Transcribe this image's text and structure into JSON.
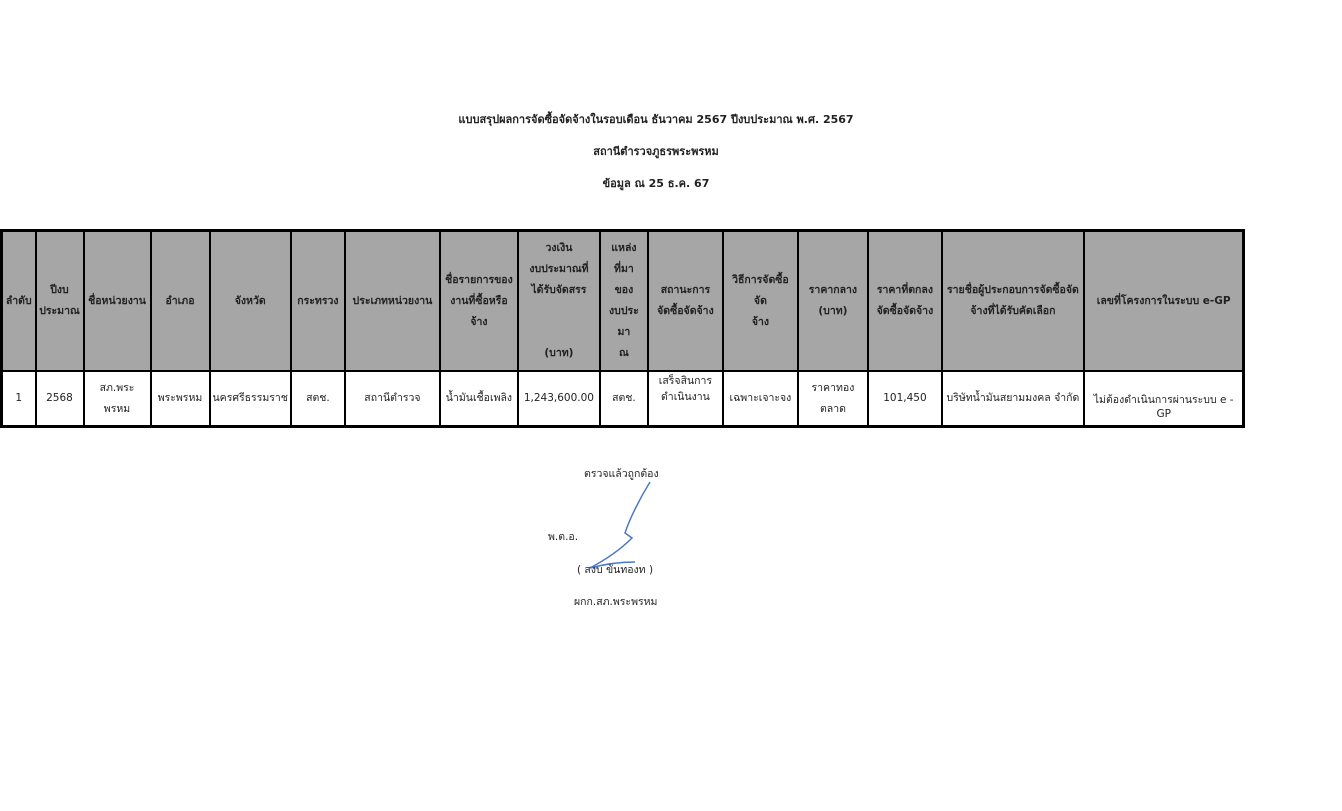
{
  "header": {
    "title": "แบบสรุปผลการจัดซื้อจัดจ้างในรอบเดือน ธันวาคม 2567 ปีงบประมาณ พ.ศ. 2567",
    "agency": "สถานีตำรวจภูธรพระพรหม",
    "as_of": "ข้อมูล ณ  25 ธ.ค. 67"
  },
  "table": {
    "columns": [
      "ลำดับ",
      "ปีงบ\nประมาณ",
      "ชื่อหน่วยงาน",
      "อำเภอ",
      "จังหวัด",
      "กระทรวง",
      "ประเภทหน่วยงาน",
      "ชื่อรายการของ\nงานที่ซื้อหรือจ้าง",
      "วงเงิน\nงบประมาณที่\nได้รับจัดสรร\n\n\n(บาท)",
      "แหล่งที่มา\nของ\nงบประมา\nณ",
      "สถานะการ\nจัดซื้อจัดจ้าง",
      "วิธีการจัดซื้อจัด\nจ้าง",
      "ราคากลาง\n(บาท)",
      "ราคาที่ตกลง\nจัดซื้อจัดจ้าง",
      "รายชื่อผู้ประกอบการจัดซื้อจัด\nจ้างที่ได้รับคัดเลือก",
      "เลขที่โครงการในระบบ e-GP"
    ],
    "rows": [
      [
        "1",
        "2568",
        "สภ.พระพรหม",
        "พระพรหม",
        "นครศรีธรรมราช",
        "สตช.",
        "สถานีตำรวจ",
        "น้ำมันเชื้อเพลิง",
        "1,243,600.00",
        "สตช.",
        "เสร็จสินการ\nดำเนินงาน",
        "เฉพาะเจาะจง",
        "ราคาทองตลาด",
        "101,450",
        "บริษัทน้ำมันสยามมงคล จำกัด",
        "ไม่ต้องดำเนินการผ่านระบบ e - GP"
      ]
    ]
  },
  "signoff": {
    "verified": "ตรวจแล้วถูกต้อง",
    "rank": "พ.ต.อ.",
    "name": "(  สงบ  ขันทองท )",
    "position": "ผกก.สภ.พระพรหม"
  },
  "colors": {
    "header_bg": "#a6a6a6",
    "signature_ink": "#4a78c2"
  }
}
